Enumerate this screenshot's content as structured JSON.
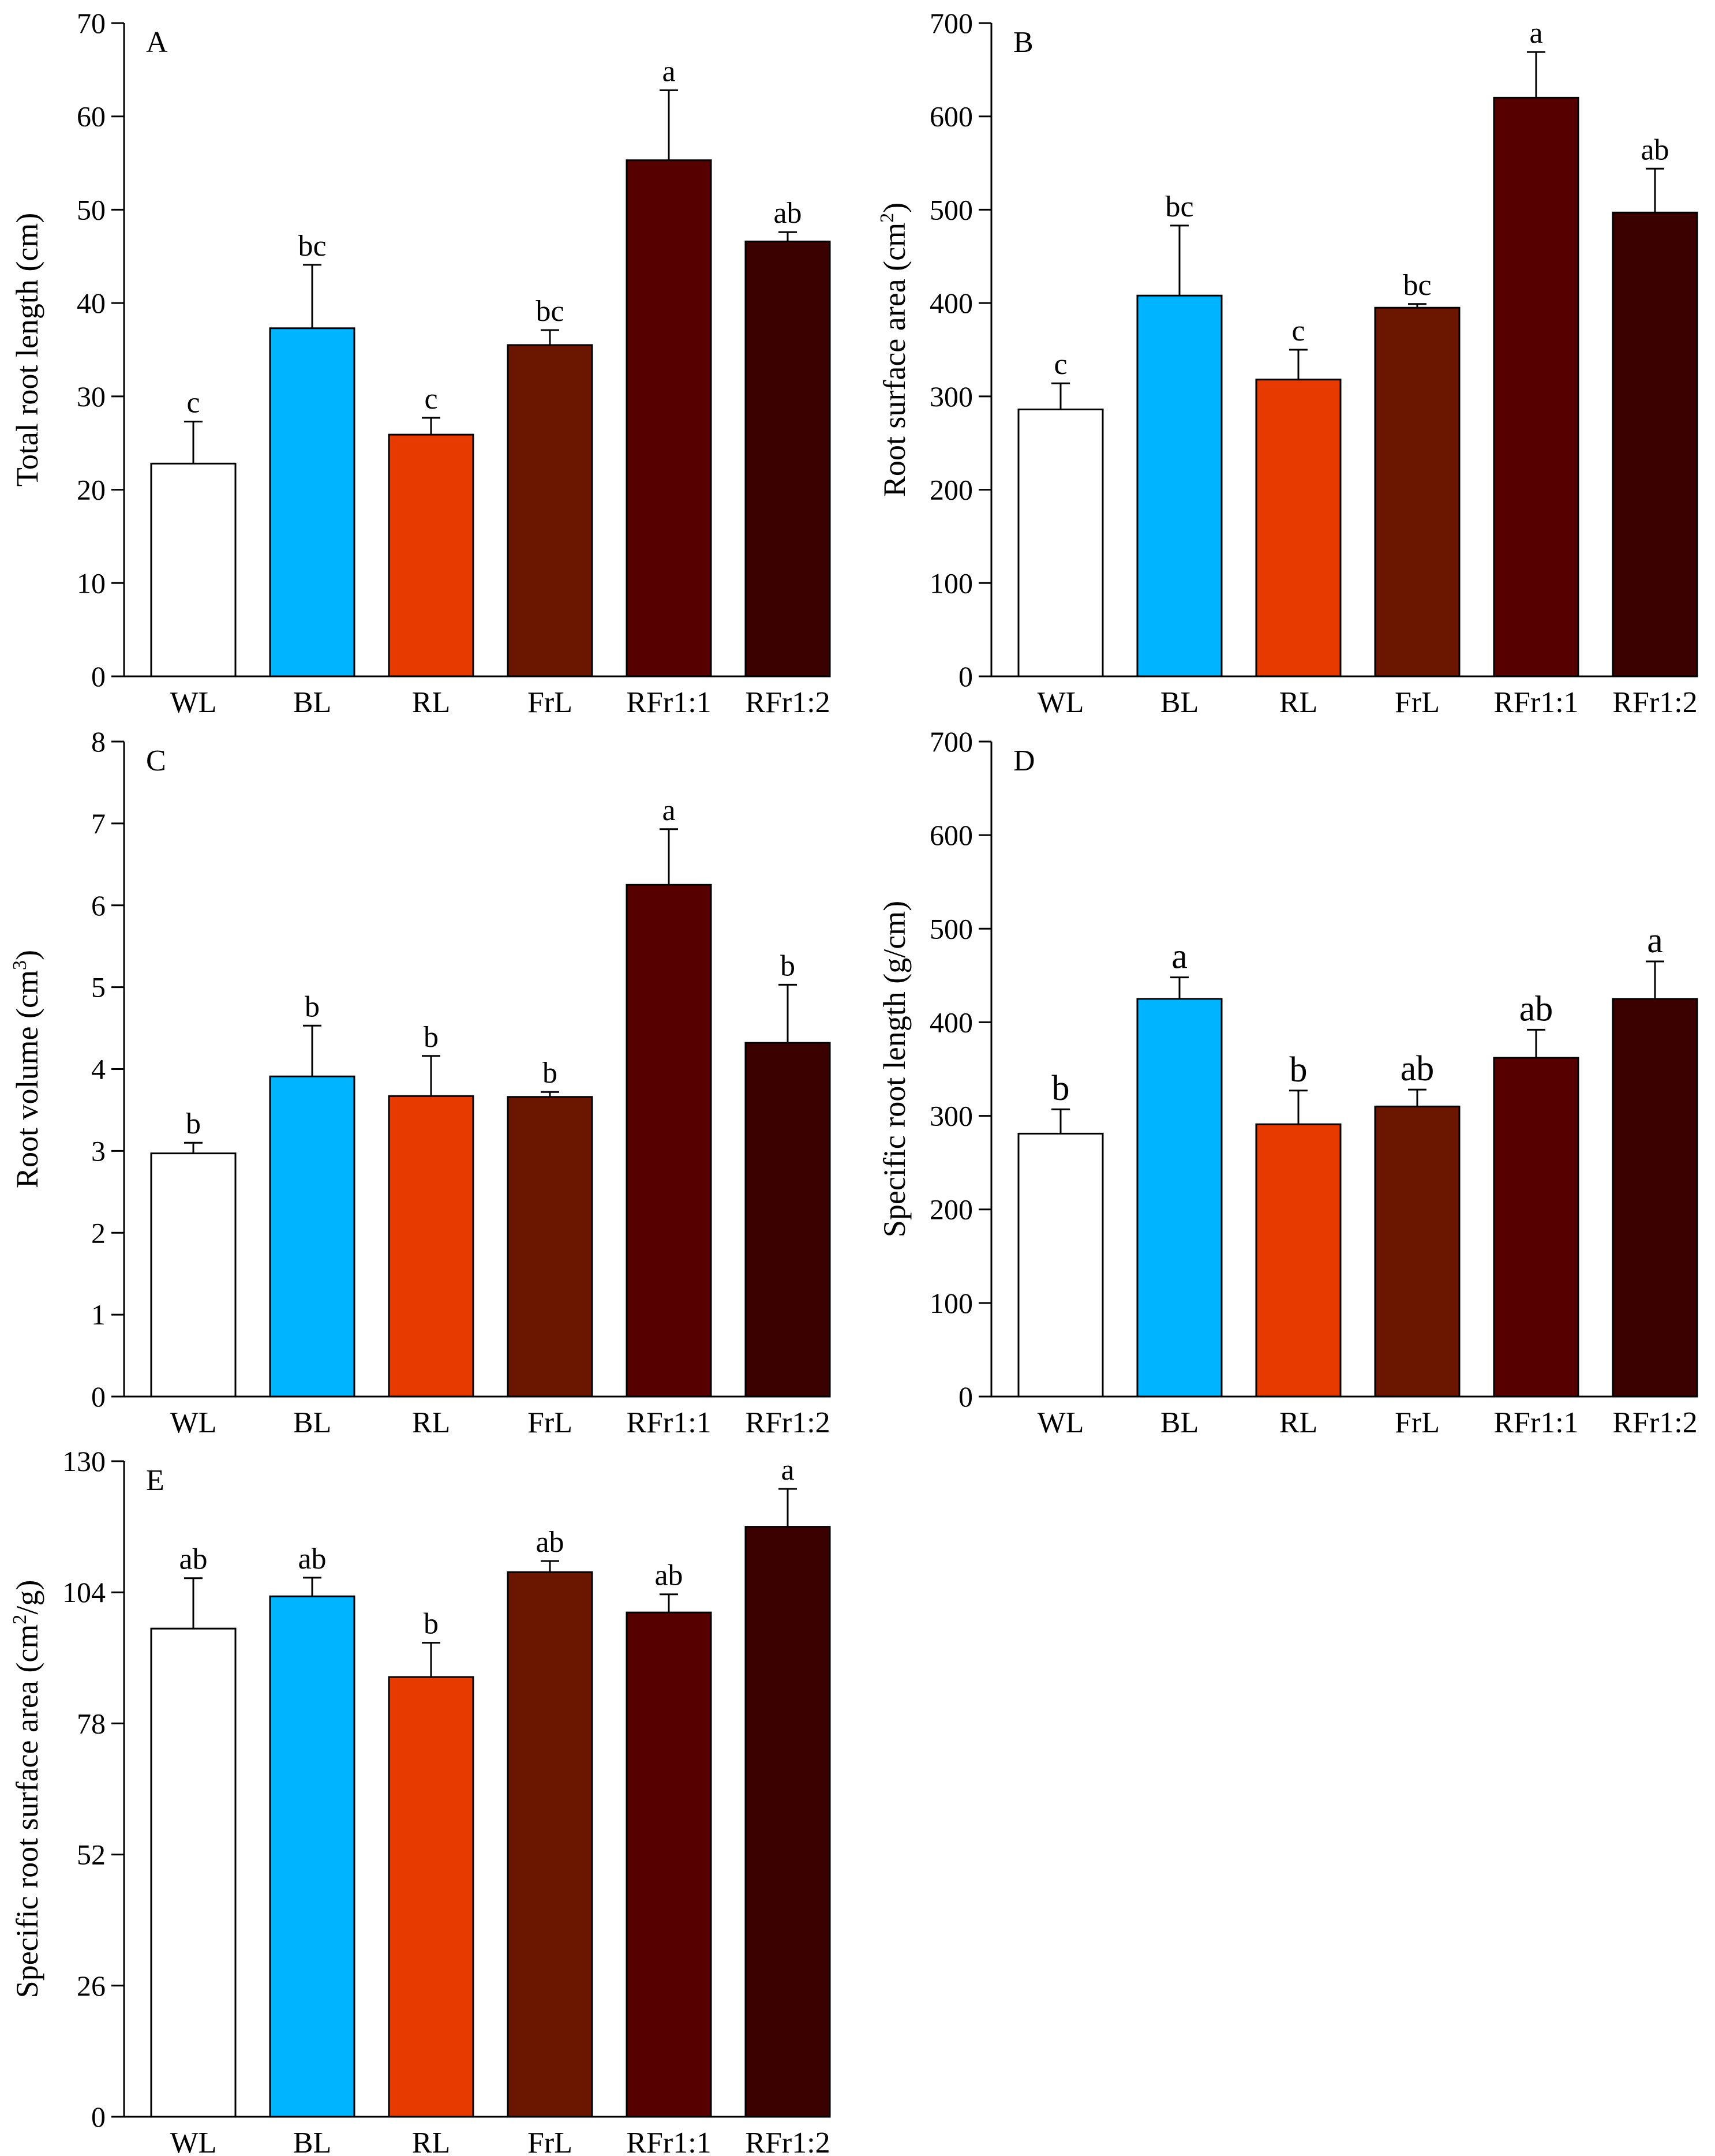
{
  "figure": {
    "categories": [
      "WL",
      "BL",
      "RL",
      "FrL",
      "RFr1:1",
      "RFr1:2"
    ],
    "bar_colors": [
      "#ffffff",
      "#00b4ff",
      "#e63a00",
      "#6b1700",
      "#560000",
      "#3b0000"
    ]
  },
  "chart_data": [
    {
      "type": "bar",
      "panel": "A",
      "title": "",
      "ylabel": "Total root length (cm)",
      "ylabel_sup": "",
      "ylabel_tail": "",
      "xlabel": "",
      "ylim": [
        0,
        70
      ],
      "yticks": [
        0,
        10,
        20,
        30,
        40,
        50,
        60,
        70
      ],
      "categories": [
        "WL",
        "BL",
        "RL",
        "FrL",
        "RFr1:1",
        "RFr1:2"
      ],
      "values": [
        22.8,
        37.3,
        25.9,
        35.5,
        55.3,
        46.6
      ],
      "errors": [
        4.5,
        6.8,
        1.8,
        1.6,
        7.5,
        1.0
      ],
      "letters": [
        "c",
        "bc",
        "c",
        "bc",
        "a",
        "ab"
      ]
    },
    {
      "type": "bar",
      "panel": "B",
      "title": "",
      "ylabel": "Root surface area (cm",
      "ylabel_sup": "2",
      "ylabel_tail": ")",
      "xlabel": "",
      "ylim": [
        0,
        700
      ],
      "yticks": [
        0,
        100,
        200,
        300,
        400,
        500,
        600,
        700
      ],
      "categories": [
        "WL",
        "BL",
        "RL",
        "FrL",
        "RFr1:1",
        "RFr1:2"
      ],
      "values": [
        286,
        408,
        318,
        395,
        620,
        497
      ],
      "errors": [
        28,
        75,
        32,
        4,
        49,
        47
      ],
      "letters": [
        "c",
        "bc",
        "c",
        "bc",
        "a",
        "ab"
      ]
    },
    {
      "type": "bar",
      "panel": "C",
      "title": "",
      "ylabel": "Root volume (cm",
      "ylabel_sup": "3",
      "ylabel_tail": ")",
      "xlabel": "",
      "ylim": [
        0,
        8
      ],
      "yticks": [
        0,
        1,
        2,
        3,
        4,
        5,
        6,
        7,
        8
      ],
      "categories": [
        "WL",
        "BL",
        "RL",
        "FrL",
        "RFr1:1",
        "RFr1:2"
      ],
      "values": [
        2.97,
        3.91,
        3.67,
        3.66,
        6.25,
        4.32
      ],
      "errors": [
        0.13,
        0.62,
        0.49,
        0.06,
        0.68,
        0.71
      ],
      "letters": [
        "b",
        "b",
        "b",
        "b",
        "a",
        "b"
      ]
    },
    {
      "type": "bar",
      "panel": "D",
      "title": "",
      "ylabel": "Specific root length (g/cm)",
      "ylabel_sup": "",
      "ylabel_tail": "",
      "xlabel": "",
      "ylim": [
        0,
        700
      ],
      "yticks": [
        0,
        100,
        200,
        300,
        400,
        500,
        600,
        700
      ],
      "categories": [
        "WL",
        "BL",
        "RL",
        "FrL",
        "RFr1:1",
        "RFr1:2"
      ],
      "values": [
        281,
        425,
        291,
        310,
        362,
        425
      ],
      "errors": [
        26,
        23,
        36,
        18,
        30,
        40
      ],
      "letters": [
        "b",
        "a",
        "b",
        "ab",
        "ab",
        "a"
      ]
    },
    {
      "type": "bar",
      "panel": "E",
      "title": "",
      "ylabel": "Specific root surface area (cm",
      "ylabel_sup": "2",
      "ylabel_tail": "/g)",
      "xlabel": "",
      "ylim": [
        0,
        130
      ],
      "yticks": [
        0,
        26,
        52,
        78,
        104,
        130
      ],
      "categories": [
        "WL",
        "BL",
        "RL",
        "FrL",
        "RFr1:1",
        "RFr1:2"
      ],
      "values": [
        96.8,
        103.2,
        87.2,
        108.0,
        100.0,
        117.0
      ],
      "errors": [
        10.0,
        3.7,
        6.8,
        2.2,
        3.6,
        7.5
      ],
      "letters": [
        "ab",
        "ab",
        "b",
        "ab",
        "ab",
        "a"
      ]
    }
  ]
}
